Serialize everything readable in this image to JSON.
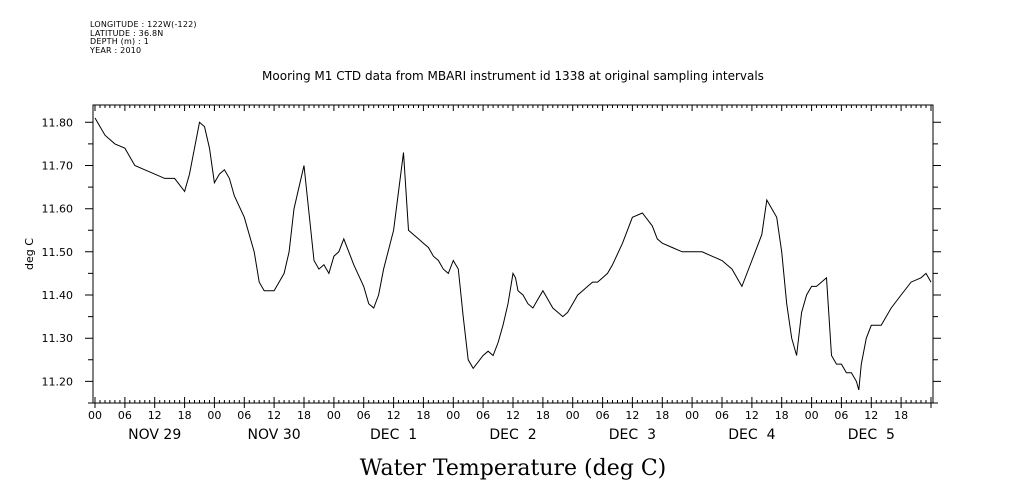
{
  "meta": {
    "longitude": "LONGITUDE : 122W(-122)",
    "latitude": "LATITUDE : 36.8N",
    "depth": "DEPTH (m) : 1",
    "year": "YEAR : 2010"
  },
  "chart_data": {
    "type": "line",
    "title": "Mooring M1 CTD data from MBARI instrument id 1338 at original sampling intervals",
    "xlabel": "Water Temperature (deg C)",
    "ylabel": "deg C",
    "x_unit": "hours since NOV 29 00:00",
    "xlim": [
      0,
      168
    ],
    "ylim": [
      11.15,
      11.84
    ],
    "yticks": [
      11.2,
      11.3,
      11.4,
      11.5,
      11.6,
      11.7,
      11.8
    ],
    "ytick_labels": [
      "11.20",
      "11.30",
      "11.40",
      "11.50",
      "11.60",
      "11.70",
      "11.80"
    ],
    "xtick_hours": [
      "00",
      "06",
      "12",
      "18",
      "00",
      "06",
      "12",
      "18",
      "00",
      "06",
      "12",
      "18",
      "00",
      "06",
      "12",
      "18",
      "00",
      "06",
      "12",
      "18",
      "00",
      "06",
      "12",
      "18",
      "00",
      "06",
      "12",
      "18"
    ],
    "day_labels": [
      "NOV 29",
      "NOV 30",
      "DEC  1",
      "DEC  2",
      "DEC  3",
      "DEC  4",
      "DEC  5"
    ],
    "grid": false,
    "series": [
      {
        "name": "Water Temperature",
        "color": "#000000",
        "x": [
          0,
          2,
          4,
          6,
          8,
          10,
          12,
          14,
          16,
          18,
          19,
          20,
          21,
          22,
          23,
          24,
          25,
          26,
          27,
          28,
          30,
          32,
          33,
          34,
          36,
          37,
          38,
          39,
          40,
          42,
          44,
          45,
          46,
          47,
          48,
          49,
          50,
          52,
          54,
          55,
          56,
          57,
          58,
          60,
          62,
          63,
          64,
          65,
          66,
          67,
          68,
          69,
          70,
          71,
          72,
          73,
          74,
          75,
          76,
          78,
          79,
          80,
          81,
          82,
          83,
          84,
          84.5,
          85,
          86,
          87,
          88,
          89,
          90,
          91,
          92,
          93,
          94,
          95,
          96,
          97,
          98,
          99,
          100,
          101,
          102,
          103,
          104,
          106,
          108,
          110,
          112,
          113,
          114,
          116,
          118,
          120,
          122,
          124,
          126,
          128,
          130,
          132,
          134,
          135,
          136,
          137,
          138,
          139,
          140,
          141,
          142,
          143,
          144,
          145,
          146,
          147,
          148,
          149,
          150,
          151,
          152,
          153,
          153.5,
          154,
          155,
          156,
          157,
          158,
          159,
          160,
          162,
          164,
          166,
          167,
          168
        ],
        "values": [
          11.81,
          11.77,
          11.75,
          11.74,
          11.7,
          11.69,
          11.68,
          11.67,
          11.67,
          11.64,
          11.68,
          11.74,
          11.8,
          11.79,
          11.74,
          11.66,
          11.68,
          11.69,
          11.67,
          11.63,
          11.58,
          11.5,
          11.43,
          11.41,
          11.41,
          11.43,
          11.45,
          11.5,
          11.6,
          11.7,
          11.48,
          11.46,
          11.47,
          11.45,
          11.49,
          11.5,
          11.53,
          11.47,
          11.42,
          11.38,
          11.37,
          11.4,
          11.46,
          11.55,
          11.73,
          11.55,
          11.54,
          11.53,
          11.52,
          11.51,
          11.49,
          11.48,
          11.46,
          11.45,
          11.48,
          11.46,
          11.35,
          11.25,
          11.23,
          11.26,
          11.27,
          11.26,
          11.29,
          11.33,
          11.38,
          11.45,
          11.44,
          11.41,
          11.4,
          11.38,
          11.37,
          11.39,
          11.41,
          11.39,
          11.37,
          11.36,
          11.35,
          11.36,
          11.38,
          11.4,
          11.41,
          11.42,
          11.43,
          11.43,
          11.44,
          11.45,
          11.47,
          11.52,
          11.58,
          11.59,
          11.56,
          11.53,
          11.52,
          11.51,
          11.5,
          11.5,
          11.5,
          11.49,
          11.48,
          11.46,
          11.42,
          11.48,
          11.54,
          11.62,
          11.6,
          11.58,
          11.5,
          11.38,
          11.3,
          11.26,
          11.36,
          11.4,
          11.42,
          11.42,
          11.43,
          11.44,
          11.26,
          11.24,
          11.24,
          11.22,
          11.22,
          11.2,
          11.18,
          11.24,
          11.3,
          11.33,
          11.33,
          11.33,
          11.35,
          11.37,
          11.4,
          11.43,
          11.44,
          11.45,
          11.43
        ]
      }
    ]
  }
}
